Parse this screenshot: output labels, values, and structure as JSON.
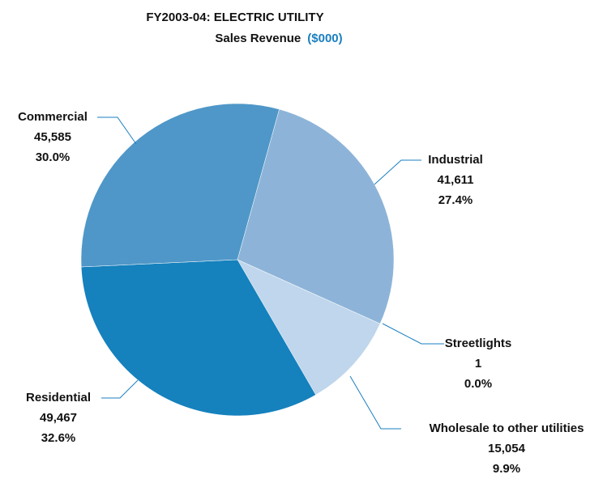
{
  "chart_data": {
    "type": "pie",
    "title": "FY2003-04: ELECTRIC UTILITY",
    "subtitle": "Sales Revenue",
    "unit": "($000)",
    "categories": [
      "Industrial",
      "Streetlights",
      "Wholesale to other utilities",
      "Residential",
      "Commercial"
    ],
    "values": [
      41611,
      1,
      15054,
      49467,
      45585
    ],
    "value_labels": [
      "41,611",
      "1",
      "15,054",
      "49,467",
      "45,585"
    ],
    "percents": [
      27.4,
      0.0,
      9.9,
      32.6,
      30.0
    ],
    "percent_labels": [
      "27.4%",
      "0.0%",
      "9.9%",
      "32.6%",
      "30.0%"
    ],
    "colors": [
      "#8db4d8",
      "#a9c8e4",
      "#bfd6ec",
      "#1581bd",
      "#4f97c8"
    ],
    "unit_color": "#1a7fc0"
  }
}
